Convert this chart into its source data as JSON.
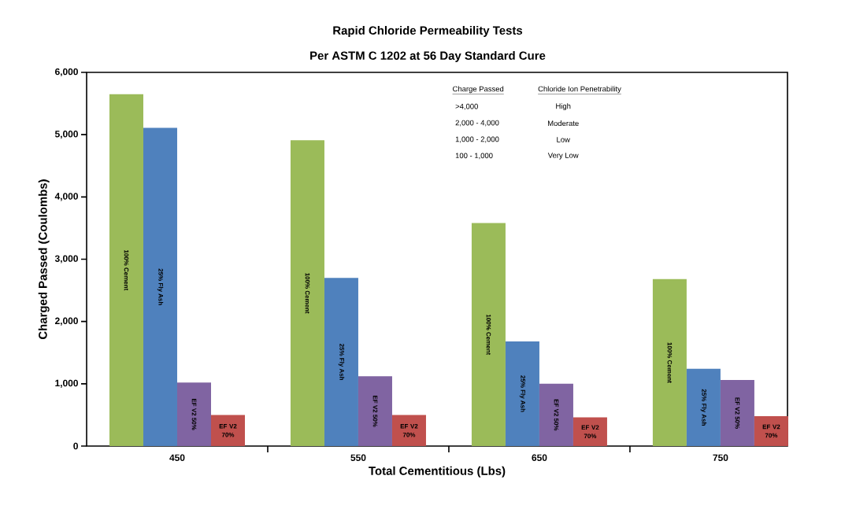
{
  "chart_data": {
    "type": "bar",
    "title": "Rapid Chloride Permeability Tests",
    "subtitle": "Per ASTM C 1202 at 56 Day Standard Cure",
    "xlabel": "Total Cementitious (Lbs)",
    "ylabel": "Charged Passed (Coulombs)",
    "categories": [
      "450",
      "550",
      "650",
      "750"
    ],
    "series": [
      {
        "name": "100% Cement",
        "color": "#9bbb59",
        "values": [
          5650,
          4910,
          3580,
          2680
        ]
      },
      {
        "name": "25% Fly Ash",
        "color": "#4f81bd",
        "values": [
          5110,
          2700,
          1680,
          1240
        ]
      },
      {
        "name": "EF V2 50%",
        "color": "#8064a2",
        "values": [
          1020,
          1120,
          1000,
          1060
        ]
      },
      {
        "name": "EF V2 70%",
        "color": "#c0504d",
        "values": [
          500,
          500,
          460,
          480
        ]
      }
    ],
    "ylim": [
      0,
      6000
    ],
    "yticks": [
      0,
      {
        "value": 1000,
        "label": "1,000"
      },
      {
        "value": 2000,
        "label": "2,000"
      },
      {
        "value": 3000,
        "label": "3,000"
      },
      {
        "value": 4000,
        "label": "4,000"
      },
      {
        "value": 5000,
        "label": "5,000"
      },
      {
        "value": 6000,
        "label": "6,000"
      }
    ],
    "annotations": [
      "Charge Passed",
      "Chloride Ion Penetrability",
      ">4,000",
      "High",
      "2,000 - 4,000",
      "Moderate",
      "1,000 - 2,000",
      "Low",
      "100 - 1,000",
      "Very Low"
    ]
  }
}
